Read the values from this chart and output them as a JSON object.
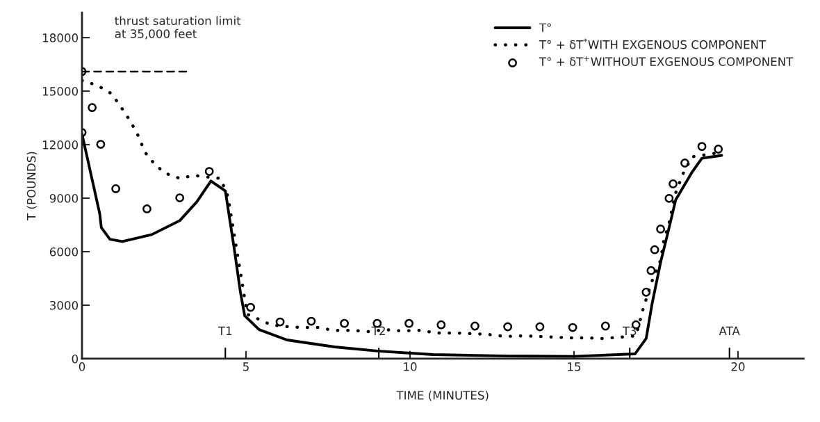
{
  "chart_data": {
    "type": "line",
    "xlabel": "TIME (MINUTES)",
    "ylabel": "T (POUNDS)",
    "xlim": [
      0,
      22
    ],
    "ylim": [
      0,
      19400
    ],
    "xticks": [
      0,
      5,
      10,
      15,
      20
    ],
    "yticks": [
      0,
      3000,
      6000,
      9000,
      12000,
      15000,
      18000
    ],
    "grid": false,
    "legend": "top right",
    "series": [
      {
        "name": "T°",
        "line_style": "solid",
        "marker": "none",
        "color": "#000000",
        "x": [
          0,
          0.54,
          0.59,
          0.85,
          1.23,
          2.13,
          2.98,
          3.5,
          3.93,
          4.37,
          4.63,
          4.83,
          4.96,
          5.4,
          6.25,
          7.7,
          9.0,
          10.7,
          13.0,
          15.0,
          16.86,
          17.2,
          17.38,
          17.64,
          17.9,
          18.1,
          18.6,
          18.9,
          19.36,
          19.5
        ],
        "values": [
          12600,
          8130,
          7350,
          6700,
          6570,
          6960,
          7740,
          8790,
          9960,
          9410,
          6300,
          3730,
          2410,
          1630,
          1050,
          660,
          430,
          230,
          150,
          130,
          270,
          1130,
          3070,
          5400,
          7350,
          8900,
          10460,
          11240,
          11360,
          11400
        ]
      },
      {
        "name": "T° + δT$^{*}$WITH EXGENOUS COMPONENT",
        "line_style": "dotted",
        "marker": "none",
        "color": "#000000",
        "x": [
          0,
          0.46,
          0.9,
          1.2,
          1.45,
          1.67,
          1.93,
          2.24,
          2.55,
          2.98,
          3.4,
          4.22,
          4.45,
          5.04,
          5.43,
          5.76,
          6.3,
          6.7,
          7.2,
          7.66,
          8.25,
          8.74,
          9.25,
          9.72,
          10.36,
          10.77,
          11.39,
          11.93,
          12.39,
          12.88,
          13.42,
          13.88,
          14.4,
          14.86,
          15.35,
          15.86,
          16.43,
          16.89,
          17.12,
          17.38,
          17.64,
          17.74,
          17.9,
          18.1,
          18.33,
          18.6,
          19.28
        ],
        "values": [
          15600,
          15330,
          14860,
          14080,
          13380,
          12680,
          11550,
          10850,
          10390,
          10110,
          10270,
          10110,
          9100,
          2490,
          2180,
          1900,
          1790,
          1750,
          1750,
          1590,
          1590,
          1520,
          1630,
          1560,
          1590,
          1440,
          1440,
          1400,
          1360,
          1250,
          1280,
          1250,
          1210,
          1170,
          1170,
          1130,
          1210,
          1280,
          2880,
          4360,
          5520,
          6650,
          7620,
          9300,
          10390,
          11320,
          11510
        ]
      },
      {
        "name": "T° + δT$^{+}$WITHOUT EXGENOUS COMPONENT",
        "type": "scatter",
        "marker": "circle",
        "color": "#000000",
        "x": [
          0,
          0,
          0.31,
          0.57,
          1.03,
          1.98,
          2.98,
          3.88,
          5.14,
          6.04,
          6.99,
          8.0,
          9.0,
          9.97,
          10.95,
          11.98,
          12.98,
          13.96,
          14.96,
          15.96,
          16.89,
          17.2,
          17.35,
          17.46,
          17.64,
          17.9,
          18.02,
          18.38,
          18.9,
          19.4
        ],
        "values": [
          16100,
          12680,
          14080,
          12020,
          9530,
          8400,
          9020,
          10500,
          2880,
          2060,
          2100,
          1980,
          1980,
          1980,
          1900,
          1830,
          1790,
          1790,
          1750,
          1830,
          1900,
          3730,
          4940,
          6110,
          7270,
          8990,
          9800,
          10970,
          11900,
          11750
        ]
      },
      {
        "line_style": "dashed",
        "marker": "none",
        "color": "#000000",
        "x": [
          0,
          3.2
        ],
        "values": [
          16100,
          16100
        ]
      }
    ],
    "annotations": [
      "thrust saturation limit\nat 35,000 feet"
    ],
    "ref_lines": [
      {
        "axis": "x",
        "value": 4.37,
        "label": "T1"
      },
      {
        "axis": "x",
        "value": 9.05,
        "label": "T2"
      },
      {
        "axis": "x",
        "value": 16.7,
        "label": "T3"
      },
      {
        "axis": "x",
        "value": 19.74,
        "label": "ATA"
      }
    ]
  }
}
